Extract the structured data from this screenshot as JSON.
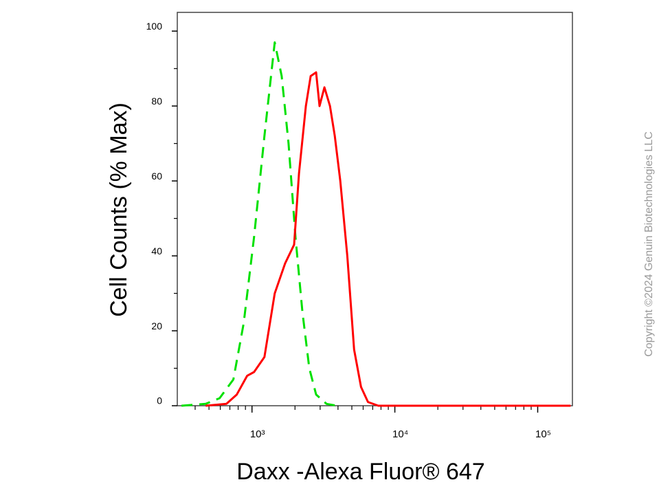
{
  "chart_data": {
    "type": "line",
    "x_label": "Daxx -Alexa Fluor® 647",
    "y_label": "Cell Counts (% Max)",
    "copyright": "Copyright ©2024 Genuin Biotechnologies LLC",
    "xscale": "log",
    "xlim": [
      300,
      175000
    ],
    "xticks": [
      {
        "value": 1000,
        "label": "10³"
      },
      {
        "value": 10000,
        "label": "10⁴"
      },
      {
        "value": 100000,
        "label": "10⁵"
      }
    ],
    "xminorticks": [
      400,
      500,
      600,
      700,
      800,
      900,
      2000,
      3000,
      4000,
      5000,
      6000,
      7000,
      8000,
      9000,
      20000,
      30000,
      40000,
      50000,
      60000,
      70000,
      80000,
      90000
    ],
    "ylim": [
      0,
      105
    ],
    "yticks": [
      0,
      20,
      40,
      60,
      80,
      100
    ],
    "yminorticks": [
      10,
      30,
      50,
      70,
      90
    ],
    "series": [
      {
        "color": "#00e000",
        "dashed": true,
        "x": [
          321,
          474,
          593,
          741,
          875,
          1034,
          1222,
          1443,
          1614,
          1803,
          2015,
          2254,
          2518,
          2812,
          3325,
          3926
        ],
        "values": [
          0,
          0.5,
          2,
          7,
          22,
          45,
          72,
          97,
          88,
          70,
          45,
          25,
          10,
          3,
          0.5,
          0
        ]
      },
      {
        "color": "#ff0000",
        "dashed": false,
        "x": [
          474,
          662,
          783,
          925,
          1034,
          1222,
          1443,
          1706,
          1972,
          2133,
          2382,
          2575,
          2812,
          2972,
          3214,
          3514,
          3800,
          4150,
          4645,
          5188,
          5797,
          6485,
          7656,
          170000
        ],
        "values": [
          0,
          0.5,
          3,
          8,
          9,
          13,
          30,
          38,
          43,
          62,
          80,
          88,
          89,
          80,
          85,
          80,
          72,
          60,
          40,
          15,
          5,
          1,
          0,
          0
        ]
      }
    ]
  }
}
